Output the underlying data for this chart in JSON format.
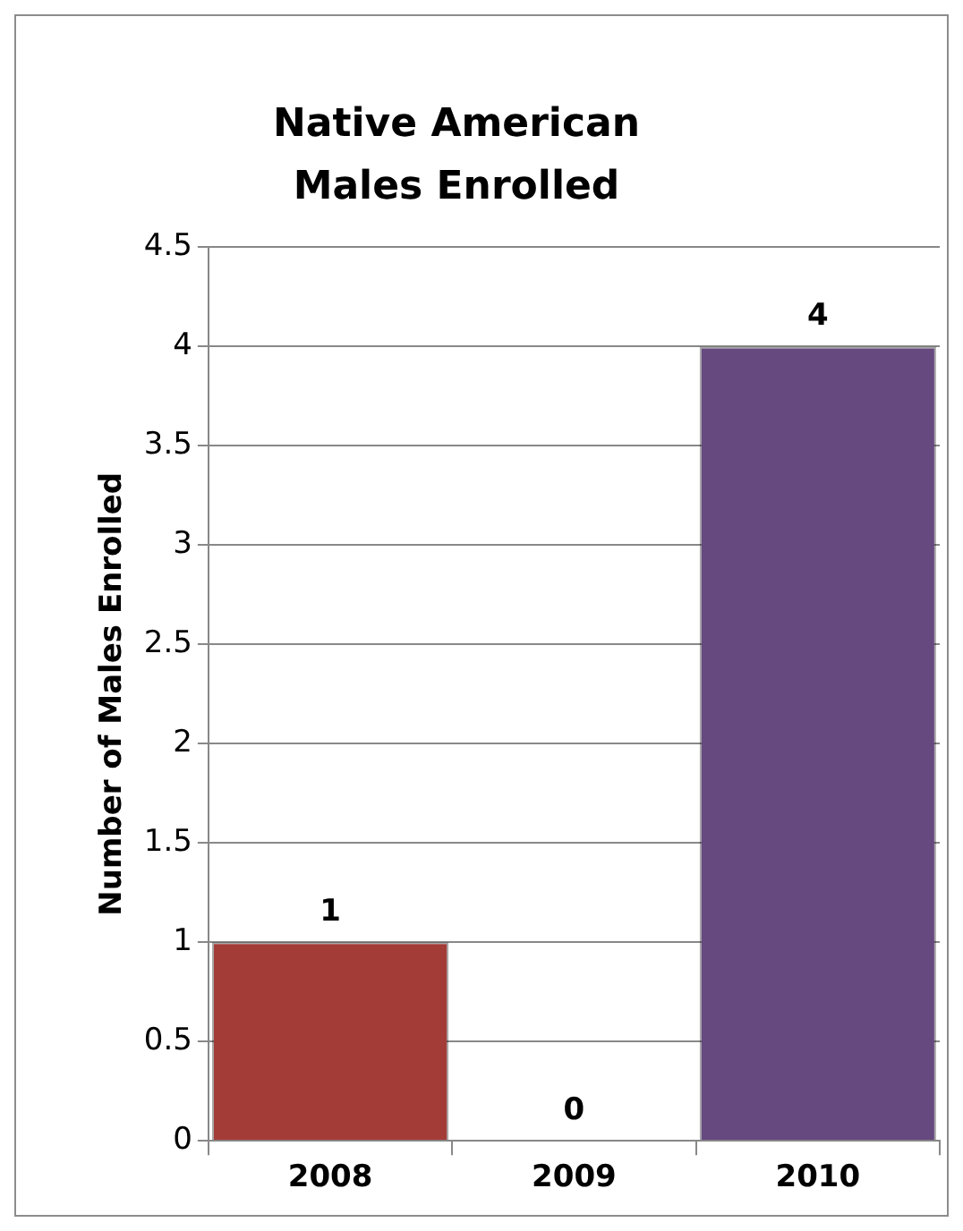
{
  "chart_data": {
    "type": "bar",
    "title": "Native American Males Enrolled",
    "ylabel": "Number of Males Enrolled",
    "categories": [
      "2008",
      "2009",
      "2010"
    ],
    "values": [
      1,
      0,
      4
    ],
    "colors": [
      "#a33b37",
      "#8064a2",
      "#65497f"
    ],
    "ylim": [
      0,
      4.5
    ],
    "yticks": [
      0,
      0.5,
      1,
      1.5,
      2,
      2.5,
      3,
      3.5,
      4,
      4.5
    ],
    "grid": "y",
    "legend": false,
    "data_labels": true
  }
}
